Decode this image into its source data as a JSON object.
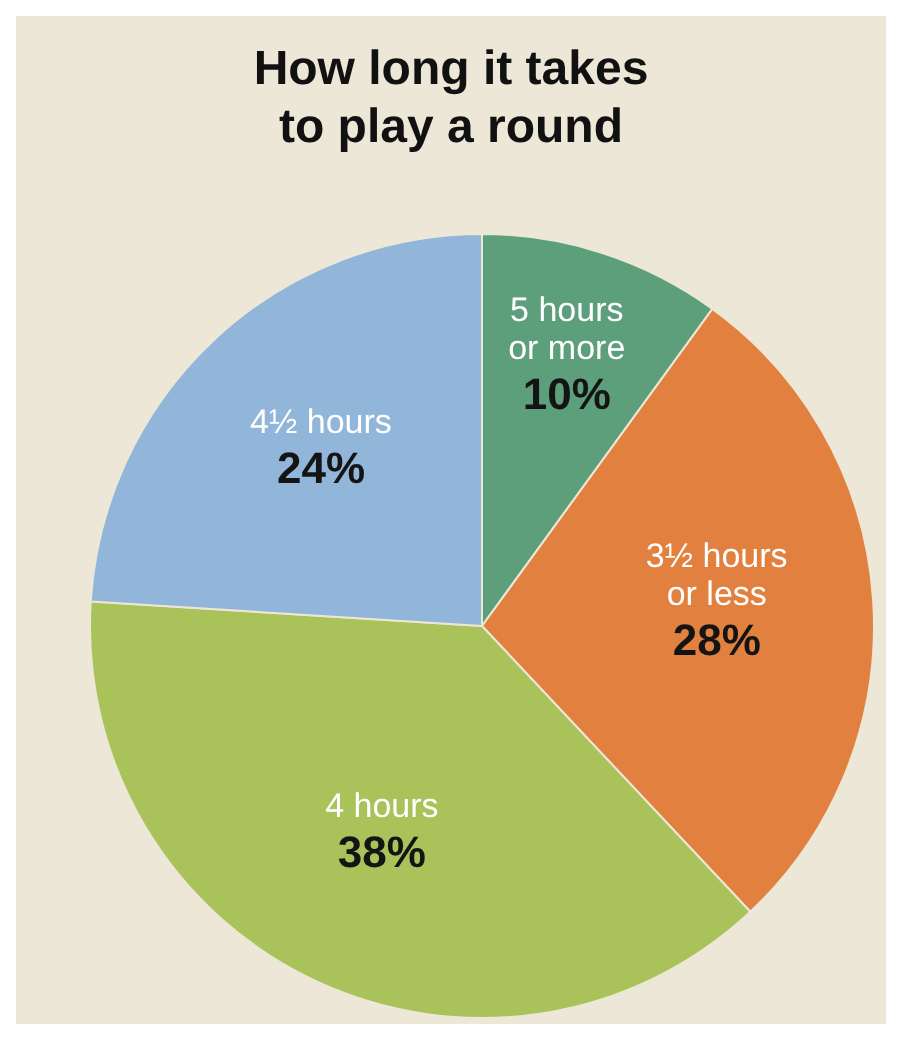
{
  "chart_data": {
    "type": "pie",
    "title": "How long it takes to play a round",
    "categories": [
      "5 hours or more",
      "3½ hours or less",
      "4 hours",
      "4½ hours"
    ],
    "values": [
      10,
      28,
      38,
      24
    ],
    "value_labels": [
      "10%",
      "28%",
      "38%",
      "24%"
    ],
    "colors": [
      "#5c9f7a",
      "#e2803f",
      "#a9c35a",
      "#92b5da"
    ]
  }
}
